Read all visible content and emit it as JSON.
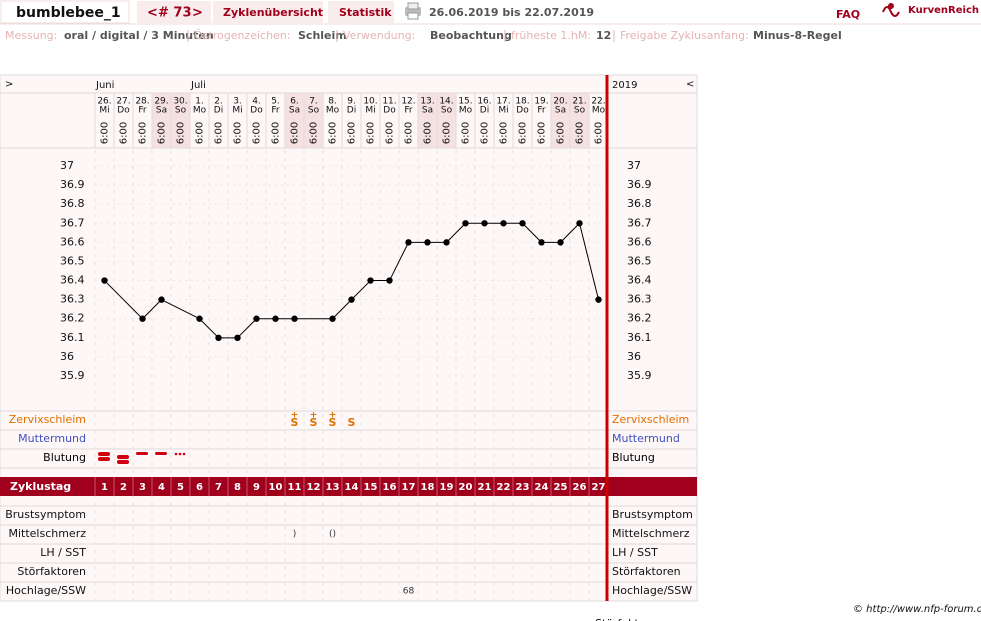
{
  "header": {
    "user": "bumblebee_1",
    "cycle_prev": "<",
    "cycle_number": "# 73",
    "cycle_next": ">",
    "tabs": [
      "Zyklenübersicht",
      "Statistik"
    ],
    "date_range": "26.06.2019 bis 22.07.2019",
    "faq": "FAQ",
    "brand": "KurvenReich"
  },
  "info": [
    {
      "label": "Messung:",
      "value": "oral / digital / 3 Minuten"
    },
    {
      "label": "Östrogenzeichen:",
      "value": "Schleim"
    },
    {
      "label": "Verwendung:",
      "value": "Beobachtung"
    },
    {
      "label": "früheste 1.hM:",
      "value": "12"
    },
    {
      "label": "Freigabe Zyklusanfang:",
      "value": "Minus-8-Regel"
    }
  ],
  "chart_data": {
    "type": "line",
    "nav_left": ">",
    "nav_right": "<",
    "year": "2019",
    "months": [
      "Juni",
      null,
      null,
      null,
      null,
      "Juli",
      null,
      null,
      null,
      null,
      null,
      null,
      null,
      null,
      null,
      null,
      null,
      null,
      null,
      null,
      null,
      null,
      null,
      null,
      null,
      null,
      null
    ],
    "categories": [
      "26.",
      "27.",
      "28.",
      "29.",
      "30.",
      "1.",
      "2.",
      "3.",
      "4.",
      "5.",
      "6.",
      "7.",
      "8.",
      "9.",
      "10.",
      "11.",
      "12.",
      "13.",
      "14.",
      "15.",
      "16.",
      "17.",
      "18.",
      "19.",
      "20.",
      "21.",
      "22."
    ],
    "weekdays": [
      "Mi",
      "Do",
      "Fr",
      "Sa",
      "So",
      "Mo",
      "Di",
      "Mi",
      "Do",
      "Fr",
      "Sa",
      "So",
      "Mo",
      "Di",
      "Mi",
      "Do",
      "Fr",
      "Sa",
      "So",
      "Mo",
      "Di",
      "Mi",
      "Do",
      "Fr",
      "Sa",
      "So",
      "Mo"
    ],
    "times": [
      "6:00",
      "6:00",
      "6:00",
      "6:00",
      "6:00",
      "6:00",
      "6:00",
      "6:00",
      "6:00",
      "6:00",
      "6:00",
      "6:00",
      "6:00",
      "6:00",
      "6:00",
      "6:00",
      "6:00",
      "6:00",
      "6:00",
      "6:00",
      "6:00",
      "6:00",
      "6:00",
      "6:00",
      "6:00",
      "6:00",
      "6:00"
    ],
    "values": [
      36.4,
      null,
      36.2,
      36.3,
      null,
      36.2,
      36.1,
      36.1,
      36.2,
      36.2,
      36.2,
      null,
      36.2,
      36.3,
      36.4,
      36.4,
      36.6,
      36.6,
      36.6,
      36.7,
      36.7,
      36.7,
      36.7,
      36.6,
      36.6,
      36.7,
      36.3
    ],
    "color": "#000000",
    "ylim": [
      35.9,
      37
    ],
    "yticks": [
      35.9,
      36,
      36.1,
      36.2,
      36.3,
      36.4,
      36.5,
      36.6,
      36.7,
      36.8,
      36.9,
      37
    ],
    "cycle_day_label": "Zyklustag",
    "cycle_days": [
      1,
      2,
      3,
      4,
      5,
      6,
      7,
      8,
      9,
      10,
      11,
      12,
      13,
      14,
      15,
      16,
      17,
      18,
      19,
      20,
      21,
      22,
      23,
      24,
      25,
      26,
      27
    ],
    "rows_top": [
      {
        "label": "Zervixschleim",
        "color": "#e07000",
        "cells": [
          null,
          null,
          null,
          null,
          null,
          null,
          null,
          null,
          null,
          null,
          {
            "top": "+",
            "main": "S"
          },
          {
            "top": "+",
            "main": "S"
          },
          {
            "top": "+",
            "main": "S"
          },
          {
            "main": "S"
          },
          null,
          null,
          null,
          null,
          null,
          null,
          null,
          null,
          null,
          null,
          null,
          null,
          null
        ]
      },
      {
        "label": "Muttermund",
        "color": "#4050c0",
        "cells": []
      },
      {
        "label": "Blutung",
        "color": "#000000",
        "cells": []
      }
    ],
    "rows_bottom": [
      {
        "label": "Brustsymptom",
        "cells": []
      },
      {
        "label": "Mittelschmerz",
        "cells": [
          null,
          null,
          null,
          null,
          null,
          null,
          null,
          null,
          null,
          null,
          ")",
          null,
          "()",
          null,
          null,
          null,
          null,
          null,
          null,
          null,
          null,
          null,
          null,
          null,
          null,
          null,
          null
        ]
      },
      {
        "label": "LH / SST",
        "cells": []
      },
      {
        "label": "Störfaktoren",
        "cells": []
      },
      {
        "label": "Hochlage/SSW",
        "cells": [
          null,
          null,
          null,
          null,
          null,
          null,
          null,
          null,
          null,
          null,
          null,
          null,
          null,
          null,
          null,
          null,
          "68",
          null,
          null,
          null,
          null,
          null,
          null,
          null,
          null,
          null,
          null
        ]
      }
    ]
  },
  "footer": {
    "copyright": "© http://www.nfp-forum.de"
  }
}
